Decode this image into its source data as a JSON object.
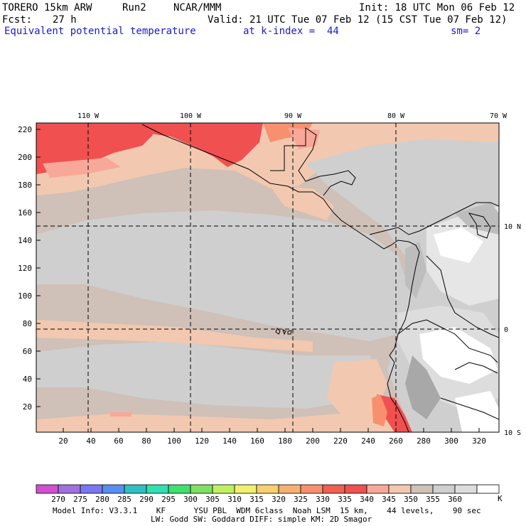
{
  "header": {
    "model": "TORERO",
    "resolution": "15km ARW",
    "run": "Run2",
    "org": "NCAR/MMM",
    "init": "Init: 18 UTC Mon 06 Feb 12",
    "fcst_label": "Fcst:",
    "fcst_value": "27 h",
    "valid": "Valid: 21 UTC Tue 07 Feb 12 (15 CST Tue 07 Feb 12)",
    "field": "Equivalent potential temperature",
    "level": "at k-index =  44",
    "smoothing": "sm= 2"
  },
  "map": {
    "lon_labels": [
      "110 W",
      "100 W",
      "90 W",
      "80 W",
      "70 W"
    ],
    "lat_labels": [
      "10 N",
      "0",
      "10 S"
    ],
    "y_ticks": [
      "20",
      "40",
      "60",
      "80",
      "100",
      "120",
      "140",
      "160",
      "180",
      "200",
      "220"
    ],
    "x_ticks": [
      "20",
      "40",
      "60",
      "80",
      "100",
      "120",
      "140",
      "160",
      "180",
      "200",
      "220",
      "240",
      "260",
      "280",
      "300",
      "320"
    ]
  },
  "colorbar": {
    "values": [
      "270",
      "275",
      "280",
      "285",
      "290",
      "295",
      "300",
      "305",
      "310",
      "315",
      "320",
      "325",
      "330",
      "335",
      "340",
      "345",
      "350",
      "355",
      "360"
    ],
    "unit": "K",
    "colors": [
      "#d050d0",
      "#a070e0",
      "#7a78f0",
      "#5a8ef0",
      "#30c0c0",
      "#30e0b0",
      "#40e070",
      "#80e060",
      "#c0f060",
      "#f0f070",
      "#f8d070",
      "#f8b070",
      "#f89070",
      "#f06050",
      "#f05050",
      "#f8a898",
      "#f2c8b0",
      "#cfc0b8",
      "#cfcfcf",
      "#dddddd",
      "#ffffff"
    ]
  },
  "footer": {
    "line1": "Model Info: V3.3.1    KF      YSU PBL  WDM 6class  Noah LSM  15 km,    44 levels,    90 sec",
    "line2": "LW: Godd SW: Goddard DIFF: simple KM: 2D Smagor"
  }
}
